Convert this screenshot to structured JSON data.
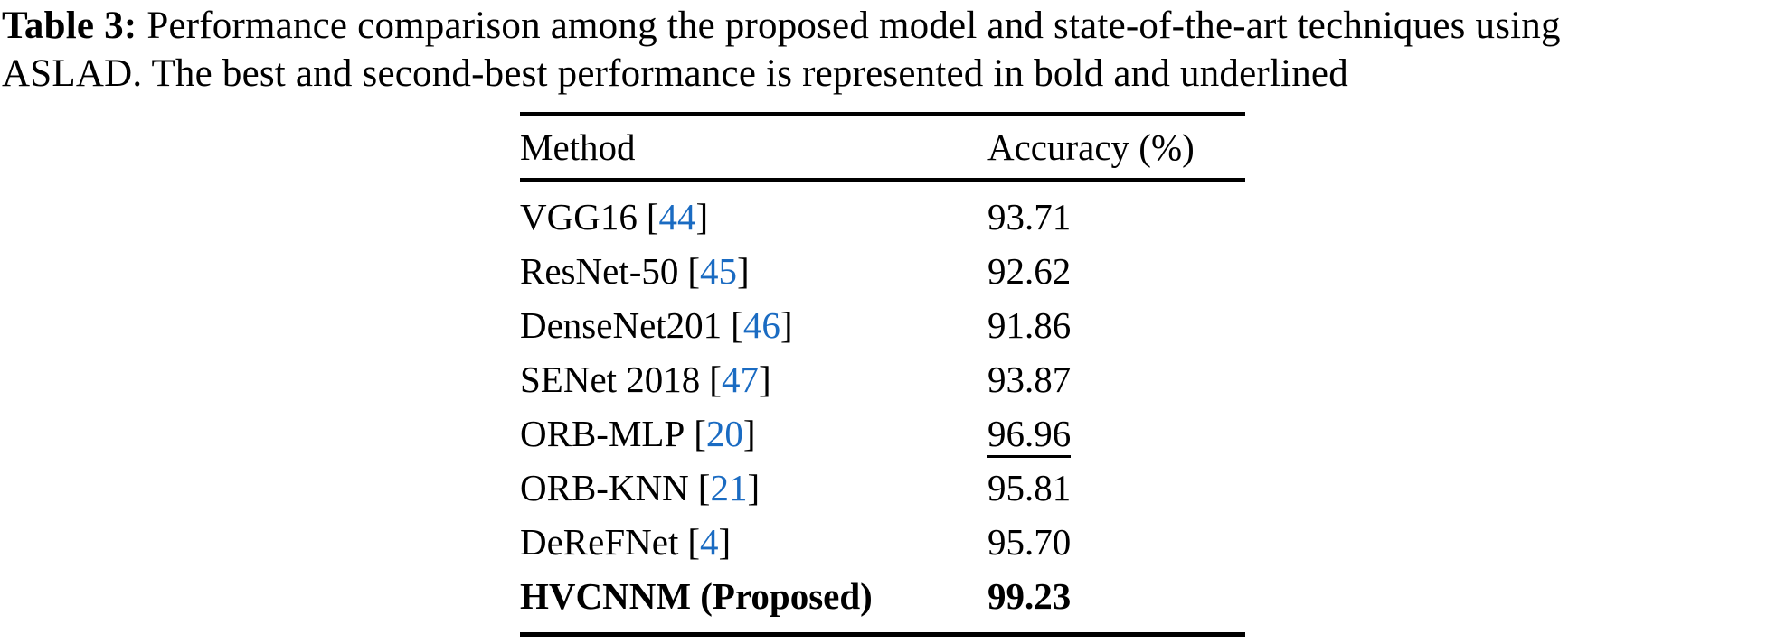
{
  "caption": {
    "label": "Table 3:",
    "line1": "Performance comparison among the proposed model and state-of-the-art techniques using",
    "line2": "ASLAD. The best and second-best performance is represented in bold and underlined"
  },
  "colors": {
    "citation_blue": "#1a6bc2",
    "text": "#000000",
    "background": "#ffffff"
  },
  "table": {
    "cite_open": "[",
    "cite_close": "]",
    "headers": [
      "Method",
      "Accuracy (%)"
    ],
    "rows": [
      {
        "method": "VGG16",
        "cite": "44",
        "accuracy": "93.71"
      },
      {
        "method": "ResNet-50",
        "cite": "45",
        "accuracy": "92.62"
      },
      {
        "method": "DenseNet201",
        "cite": "46",
        "accuracy": "91.86"
      },
      {
        "method": "SENet 2018",
        "cite": "47",
        "accuracy": "93.87"
      },
      {
        "method": "ORB-MLP",
        "cite": "20",
        "accuracy": "96.96",
        "emphasis": "underline"
      },
      {
        "method": "ORB-KNN",
        "cite": "21",
        "accuracy": "95.81"
      },
      {
        "method": "DeReFNet",
        "cite": "4",
        "accuracy": "95.70"
      },
      {
        "method": "HVCNNM (Proposed)",
        "accuracy": "99.23",
        "emphasis": "bold"
      }
    ]
  },
  "chart_data": {
    "type": "table",
    "title": "Table 3: Performance comparison among the proposed model and state-of-the-art techniques using ASLAD",
    "columns": [
      "Method",
      "Accuracy (%)"
    ],
    "rows": [
      [
        "VGG16 [44]",
        93.71
      ],
      [
        "ResNet-50 [45]",
        92.62
      ],
      [
        "DenseNet201 [46]",
        91.86
      ],
      [
        "SENet 2018 [47]",
        93.87
      ],
      [
        "ORB-MLP [20]",
        96.96
      ],
      [
        "ORB-KNN [21]",
        95.81
      ],
      [
        "DeReFNet [4]",
        95.7
      ],
      [
        "HVCNNM (Proposed)",
        99.23
      ],
      [
        "",
        null
      ]
    ],
    "annotations": {
      "best_bold": "HVCNNM (Proposed) = 99.23",
      "second_best_underlined": "ORB-MLP [20] = 96.96"
    }
  }
}
